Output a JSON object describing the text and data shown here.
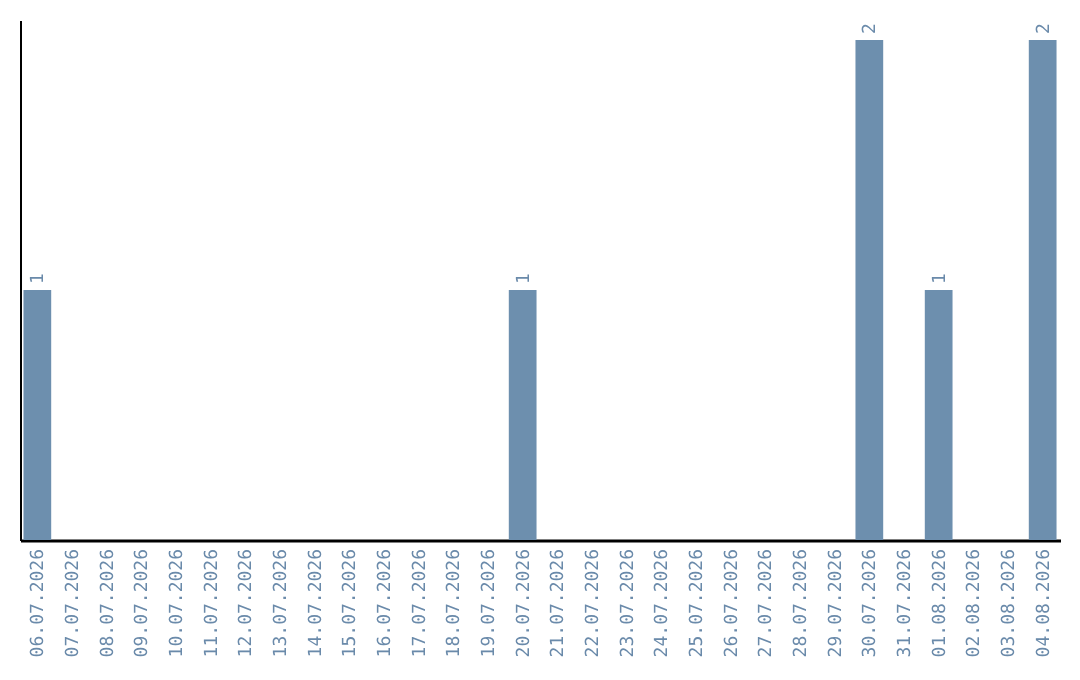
{
  "chart_data": {
    "type": "bar",
    "categories": [
      "06.07.2026",
      "07.07.2026",
      "08.07.2026",
      "09.07.2026",
      "10.07.2026",
      "11.07.2026",
      "12.07.2026",
      "13.07.2026",
      "14.07.2026",
      "15.07.2026",
      "16.07.2026",
      "17.07.2026",
      "18.07.2026",
      "19.07.2026",
      "20.07.2026",
      "21.07.2026",
      "22.07.2026",
      "23.07.2026",
      "24.07.2026",
      "25.07.2026",
      "26.07.2026",
      "27.07.2026",
      "28.07.2026",
      "29.07.2026",
      "30.07.2026",
      "31.07.2026",
      "01.08.2026",
      "02.08.2026",
      "03.08.2026",
      "04.08.2026"
    ],
    "values": [
      1,
      0,
      0,
      0,
      0,
      0,
      0,
      0,
      0,
      0,
      0,
      0,
      0,
      0,
      1,
      0,
      0,
      0,
      0,
      0,
      0,
      0,
      0,
      0,
      2,
      0,
      1,
      0,
      0,
      2
    ],
    "value_labels": [
      "1",
      null,
      null,
      null,
      null,
      null,
      null,
      null,
      null,
      null,
      null,
      null,
      null,
      null,
      "1",
      null,
      null,
      null,
      null,
      null,
      null,
      null,
      null,
      null,
      "2",
      null,
      "1",
      null,
      null,
      "2"
    ],
    "color": "#6d8fae",
    "ylim": [
      0,
      2.08
    ]
  }
}
